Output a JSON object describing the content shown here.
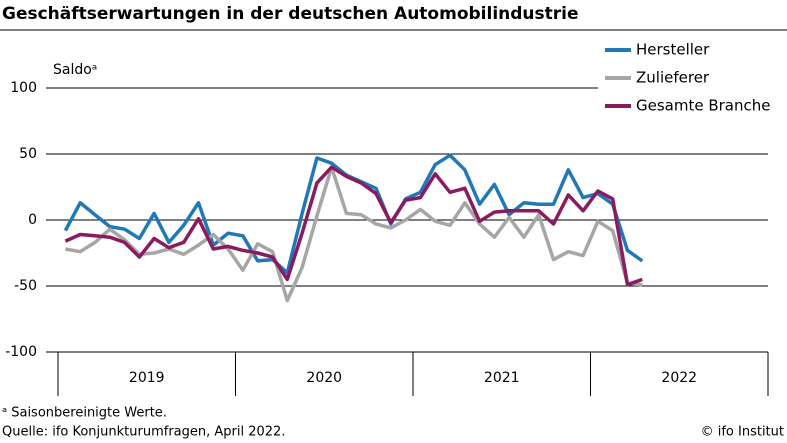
{
  "chart_data": {
    "type": "line",
    "title": "Geschäftserwartungen in der deutschen Automobilindustrie",
    "y_label": "Saldoᵃ",
    "x_labels": [
      "2019",
      "2020",
      "2021",
      "2022"
    ],
    "series": [
      {
        "name": "Hersteller",
        "color": "#1f78b8",
        "values": [
          -8,
          13,
          4,
          -5,
          -7,
          -14,
          5,
          -17,
          -4,
          13,
          -19,
          -10,
          -12,
          -31,
          -30,
          -40,
          5,
          47,
          43,
          34,
          29,
          24,
          -3,
          16,
          21,
          42,
          49,
          38,
          12,
          27,
          4,
          13,
          12,
          12,
          38,
          17,
          20,
          12,
          -23,
          -31
        ]
      },
      {
        "name": "Zulieferer",
        "color": "#a6a6a6",
        "values": [
          -22,
          -24,
          -17,
          -7,
          -15,
          -26,
          -25,
          -22,
          -26,
          -19,
          -11,
          -22,
          -38,
          -18,
          -24,
          -61,
          -36,
          3,
          40,
          5,
          4,
          -3,
          -6,
          0,
          8,
          -1,
          -4,
          13,
          -3,
          -13,
          2,
          -13,
          4,
          -30,
          -24,
          -27,
          -1,
          -8,
          -48,
          -49
        ]
      },
      {
        "name": "Gesamte Branche",
        "color": "#8c1a5f",
        "values": [
          -16,
          -11,
          -12,
          -13,
          -17,
          -28,
          -14,
          -21,
          -17,
          1,
          -22,
          -20,
          -23,
          -25,
          -28,
          -45,
          -10,
          28,
          40,
          33,
          28,
          20,
          -2,
          15,
          17,
          35,
          21,
          24,
          -1,
          6,
          7,
          7,
          7,
          -3,
          19,
          7,
          22,
          16,
          -49,
          -45
        ]
      }
    ],
    "ylim": [
      -100,
      100
    ],
    "yticks": [
      -100,
      -50,
      0,
      50,
      100
    ],
    "grid": true,
    "legend": "top-right",
    "footnote": "ᵃ Saisonbereinigte Werte.",
    "source": "Quelle: ifo Konjunkturumfragen, April 2022.",
    "credit": "© ifo Institut"
  }
}
